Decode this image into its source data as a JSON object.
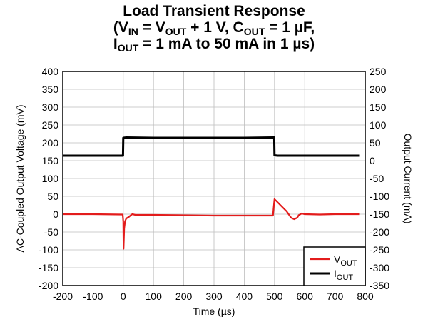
{
  "title": {
    "line1": "Load Transient Response",
    "line2": {
      "open": "(V",
      "vin_sub": "IN",
      "eq": " = V",
      "vout_sub": "OUT",
      "plus": " + 1 V, C",
      "cout_sub": "OUT",
      "cval": " = 1 µF,"
    },
    "line3": {
      "i": "I",
      "iout_sub": "OUT",
      "text": " = 1 mA to 50 mA in 1 µs)"
    }
  },
  "chart_data": {
    "type": "line",
    "title": "Load Transient Response (VIN = VOUT + 1 V, COUT = 1 µF, IOUT = 1 mA to 50 mA in 1 µs)",
    "xlabel": "Time (µs)",
    "ylabel_left": "AC-Coupled Output Voltage (mV)",
    "ylabel_right": "Output Current (mA)",
    "xlim": [
      -200,
      800
    ],
    "ylim_left": [
      -200,
      400
    ],
    "ylim_right": [
      -350,
      250
    ],
    "x_ticks": [
      -200,
      -100,
      0,
      100,
      200,
      300,
      400,
      500,
      600,
      700,
      800
    ],
    "y_ticks_left": [
      400,
      350,
      300,
      250,
      200,
      150,
      100,
      50,
      0,
      -50,
      -100,
      -150,
      -200
    ],
    "y_ticks_right": [
      250,
      200,
      150,
      100,
      50,
      0,
      -50,
      -100,
      -150,
      -200,
      -250,
      -300,
      -350
    ],
    "grid": true,
    "legend_position": "bottom-right",
    "series": [
      {
        "name": "VOUT",
        "name_main": "V",
        "name_sub": "OUT",
        "axis": "left",
        "color": "#e31c1c",
        "x": [
          -200,
          -100,
          -2,
          0,
          1,
          3,
          6,
          10,
          18,
          25,
          30,
          40,
          100,
          300,
          490,
          495,
          497,
          500,
          505,
          520,
          540,
          555,
          565,
          575,
          580,
          590,
          600,
          650,
          700,
          780
        ],
        "y": [
          0,
          0,
          -1,
          -20,
          -97,
          -40,
          -20,
          -12,
          -8,
          -3,
          0,
          -2,
          -2,
          -4,
          -4,
          -4,
          15,
          42,
          38,
          25,
          8,
          -10,
          -14,
          -10,
          -3,
          2,
          0,
          -1,
          0,
          0
        ]
      },
      {
        "name": "IOUT",
        "name_main": "I",
        "name_sub": "OUT",
        "axis": "right",
        "color": "#000000",
        "x": [
          -200,
          -1,
          0,
          10,
          100,
          200,
          300,
          400,
          499,
          500,
          510,
          600,
          700,
          780
        ],
        "y": [
          14,
          14,
          64,
          65,
          64,
          64,
          64,
          64,
          65,
          15,
          14,
          14,
          14,
          14
        ]
      }
    ]
  }
}
